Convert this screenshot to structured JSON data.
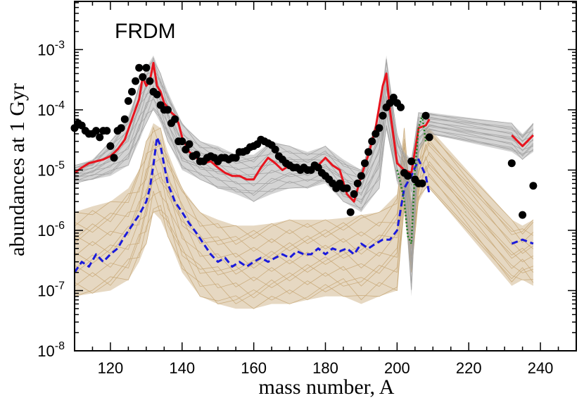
{
  "chart_data": {
    "type": "line",
    "panel_label": "FRDM",
    "xlabel": "mass number, A",
    "ylabel": "abundances at 1 Gyr",
    "xlim": [
      110,
      250
    ],
    "ylim_log10": [
      -8,
      -2.2
    ],
    "yscale": "log",
    "x_ticks": [
      120,
      140,
      160,
      180,
      200,
      220,
      240
    ],
    "y_ticks": [
      {
        "exp": -8,
        "base": "10",
        "power": "-8"
      },
      {
        "exp": -7,
        "base": "10",
        "power": "-7"
      },
      {
        "exp": -6,
        "base": "10",
        "power": "-6"
      },
      {
        "exp": -5,
        "base": "10",
        "power": "-5"
      },
      {
        "exp": -4,
        "base": "10",
        "power": "-4"
      },
      {
        "exp": -3,
        "base": "10",
        "power": "-3"
      }
    ],
    "colors": {
      "red_line": "#e8141e",
      "blue_dashed": "#1a1adc",
      "green_dotted": "#1a7a1a",
      "gray_band": "#a0a0a0",
      "tan_band": "#c8a878",
      "solar_points": "#000000"
    },
    "series": [
      {
        "style": "red-solid",
        "x": [
          110,
          112,
          114,
          116,
          118,
          120,
          122,
          124,
          126,
          128,
          129,
          130,
          131,
          132,
          133,
          134,
          135,
          136,
          137,
          138,
          139,
          140,
          142,
          144,
          146,
          148,
          150,
          152,
          154,
          156,
          158,
          160,
          162,
          164,
          166,
          168,
          170,
          172,
          174,
          176,
          178,
          180,
          182,
          184,
          186,
          188,
          190,
          192,
          194,
          196,
          197,
          198,
          200,
          202,
          204,
          206,
          208,
          209
        ],
        "y": [
          9e-06,
          1.1e-05,
          1.3e-05,
          1.4e-05,
          1.5e-05,
          1.7e-05,
          2.2e-05,
          3.2e-05,
          7e-05,
          0.00015,
          0.00035,
          0.00025,
          0.0003,
          0.0006,
          0.00025,
          0.0002,
          0.00013,
          0.00011,
          9e-05,
          8e-05,
          6e-05,
          3.5e-05,
          2e-05,
          1.6e-05,
          1.3e-05,
          1.4e-05,
          1.1e-05,
          9e-06,
          8e-06,
          8e-06,
          7e-06,
          7e-06,
          1.1e-05,
          1.6e-05,
          1.3e-05,
          1e-05,
          1.2e-05,
          1e-05,
          1.1e-05,
          1e-05,
          1.2e-05,
          1.6e-05,
          1.2e-05,
          1e-05,
          4e-06,
          3e-06,
          8e-06,
          1.8e-05,
          5e-05,
          0.00025,
          0.0004,
          0.0001,
          1.3e-05,
          1e-05,
          9e-06,
          5e-05,
          5.5e-05,
          7e-05
        ]
      },
      {
        "style": "red-solid",
        "x": [
          232,
          235,
          238
        ],
        "y": [
          3.8e-05,
          2.5e-05,
          3.8e-05
        ]
      },
      {
        "style": "blue-dashed",
        "x": [
          110,
          112,
          114,
          116,
          118,
          120,
          122,
          124,
          126,
          128,
          130,
          131,
          132,
          133,
          134,
          135,
          136,
          138,
          140,
          142,
          144,
          146,
          148,
          150,
          152,
          154,
          156,
          158,
          160,
          162,
          164,
          166,
          168,
          170,
          172,
          174,
          176,
          178,
          180,
          182,
          184,
          186,
          188,
          190,
          192,
          194,
          196,
          198,
          200,
          202,
          204,
          206,
          208,
          209
        ],
        "y": [
          2e-07,
          3e-07,
          2.5e-07,
          4e-07,
          3e-07,
          4e-07,
          5e-07,
          8e-07,
          1.2e-06,
          1.8e-06,
          3e-06,
          5e-06,
          1.2e-05,
          3.5e-05,
          2.5e-05,
          1.2e-05,
          6e-06,
          3e-06,
          2e-06,
          1.3e-06,
          9e-07,
          6e-07,
          4e-07,
          3e-07,
          3.5e-07,
          2.5e-07,
          3e-07,
          2.5e-07,
          3e-07,
          3.5e-07,
          3e-07,
          3.5e-07,
          4e-07,
          3.5e-07,
          4.5e-07,
          4e-07,
          4e-07,
          5e-07,
          4e-07,
          5e-07,
          4.5e-07,
          5e-07,
          4e-07,
          6e-07,
          5e-07,
          6e-07,
          7e-07,
          7e-07,
          1e-06,
          5e-06,
          8e-06,
          1.5e-05,
          8e-06,
          4e-06
        ]
      },
      {
        "style": "blue-dashed",
        "x": [
          232,
          235,
          238
        ],
        "y": [
          6e-07,
          7e-07,
          6e-07
        ]
      },
      {
        "style": "green-dotted",
        "x": [
          200,
          201,
          202,
          203,
          204,
          205,
          206,
          207,
          208
        ],
        "y": [
          1e-05,
          6e-06,
          3e-06,
          8e-07,
          6e-07,
          1e-05,
          5e-05,
          8e-05,
          3e-05
        ]
      }
    ],
    "solar_points": {
      "x": [
        110,
        111,
        112,
        113,
        114,
        115,
        116,
        117,
        118,
        119,
        120,
        121,
        122,
        123,
        124,
        125,
        126,
        127,
        128,
        129,
        130,
        131,
        132,
        133,
        134,
        135,
        136,
        137,
        138,
        139,
        140,
        141,
        142,
        143,
        144,
        145,
        146,
        147,
        148,
        149,
        150,
        151,
        152,
        153,
        154,
        155,
        156,
        157,
        158,
        159,
        160,
        161,
        162,
        163,
        164,
        165,
        166,
        167,
        168,
        169,
        170,
        171,
        172,
        173,
        174,
        175,
        176,
        177,
        178,
        179,
        180,
        181,
        182,
        183,
        184,
        185,
        186,
        187,
        188,
        189,
        190,
        191,
        192,
        193,
        194,
        195,
        196,
        197,
        198,
        199,
        200,
        201,
        202,
        203,
        204,
        205,
        206,
        207,
        208,
        209,
        232,
        235,
        238
      ],
      "y": [
        5e-05,
        6e-05,
        5.5e-05,
        4.5e-05,
        4e-05,
        4e-05,
        4.5e-05,
        3.5e-05,
        4.5e-05,
        4.5e-05,
        2.5e-05,
        1.6e-05,
        4.5e-05,
        5e-05,
        7e-05,
        0.00014,
        0.0002,
        0.0003,
        0.0005,
        0.00035,
        0.0005,
        0.0003,
        0.0002,
        0.00018,
        0.00012,
        0.0001,
        0.0001,
        6e-05,
        7e-05,
        3e-05,
        3e-05,
        2.2e-05,
        2.7e-05,
        1.7e-05,
        1.8e-05,
        1.4e-05,
        1.4e-05,
        1.6e-05,
        1.7e-05,
        1.6e-05,
        1.4e-05,
        1.6e-05,
        1.6e-05,
        1.5e-05,
        1.6e-05,
        1.6e-05,
        2e-05,
        2e-05,
        2.1e-05,
        2.4e-05,
        2.5e-05,
        2.7e-05,
        3.2e-05,
        3e-05,
        2.8e-05,
        2.6e-05,
        2.2e-05,
        1.7e-05,
        1.5e-05,
        1.3e-05,
        1.2e-05,
        1.1e-05,
        1.1e-05,
        1e-05,
        1.1e-05,
        1e-05,
        1e-05,
        1.2e-05,
        1.1e-05,
        9e-06,
        8e-06,
        7e-06,
        6e-06,
        5e-06,
        6e-06,
        5e-06,
        5e-06,
        2e-06,
        4e-06,
        6e-06,
        8e-06,
        1.3e-05,
        2e-05,
        3e-05,
        4e-05,
        5e-05,
        8e-05,
        0.00011,
        0.00013,
        0.00016,
        0.00013,
        0.00011,
        9e-06,
        8e-06,
        1.4e-05,
        7e-06,
        6e-06,
        6e-06,
        8e-05,
        3.5e-05,
        1.3e-05,
        1.8e-06,
        5.5e-06
      ]
    },
    "gray_band": {
      "x": [
        110,
        115,
        120,
        125,
        128,
        130,
        132,
        134,
        136,
        140,
        145,
        150,
        155,
        160,
        165,
        170,
        175,
        180,
        185,
        190,
        195,
        197,
        200,
        202,
        204,
        206,
        209,
        232,
        235,
        238
      ],
      "low": [
        6e-06,
        7e-06,
        8e-06,
        1.2e-05,
        3e-05,
        6e-05,
        0.0001,
        6e-05,
        3e-05,
        1e-05,
        7e-06,
        5e-06,
        4e-06,
        3e-06,
        4e-06,
        5e-06,
        5e-06,
        6e-06,
        3e-06,
        2e-06,
        5e-06,
        5e-05,
        6e-06,
        4e-06,
        8e-08,
        2e-05,
        4e-05,
        2e-05,
        1.5e-05,
        2e-05
      ],
      "high": [
        1.2e-05,
        1.5e-05,
        3e-05,
        8e-05,
        0.00025,
        0.0005,
        0.0008,
        0.0004,
        0.0002,
        6e-05,
        3e-05,
        2.5e-05,
        1.8e-05,
        1.8e-05,
        3e-05,
        2.5e-05,
        2e-05,
        2.5e-05,
        1.5e-05,
        1e-05,
        9e-05,
        0.0008,
        4e-05,
        2e-05,
        1.5e-05,
        9e-05,
        9e-05,
        6e-05,
        4e-05,
        6e-05
      ]
    },
    "tan_band": {
      "x": [
        110,
        115,
        120,
        125,
        128,
        130,
        132,
        134,
        136,
        140,
        145,
        150,
        155,
        160,
        165,
        170,
        175,
        180,
        185,
        190,
        195,
        200,
        202,
        204,
        206,
        208,
        209,
        232,
        235,
        238
      ],
      "low": [
        8e-08,
        9e-08,
        1e-07,
        1.5e-07,
        3e-07,
        6e-07,
        2e-06,
        1.5e-06,
        8e-07,
        2e-07,
        8e-08,
        6e-08,
        5e-08,
        5e-08,
        6e-08,
        6e-08,
        7e-08,
        8e-08,
        8e-08,
        6e-08,
        8e-08,
        1e-07,
        2e-06,
        2e-07,
        3e-06,
        5e-06,
        5e-06,
        1.2e-07,
        1.5e-07,
        1.2e-07
      ],
      "high": [
        2e-06,
        2.5e-06,
        3e-06,
        5e-06,
        1e-05,
        3e-05,
        6e-05,
        5e-05,
        2e-05,
        5e-06,
        2e-06,
        1.5e-06,
        1.2e-06,
        1.2e-06,
        1.3e-06,
        1.5e-06,
        1.5e-06,
        1.5e-06,
        1.6e-06,
        1.8e-06,
        2e-06,
        4e-06,
        5e-05,
        3e-06,
        2e-05,
        5e-05,
        5e-05,
        1.5e-06,
        1.2e-06,
        1.5e-06
      ]
    }
  }
}
